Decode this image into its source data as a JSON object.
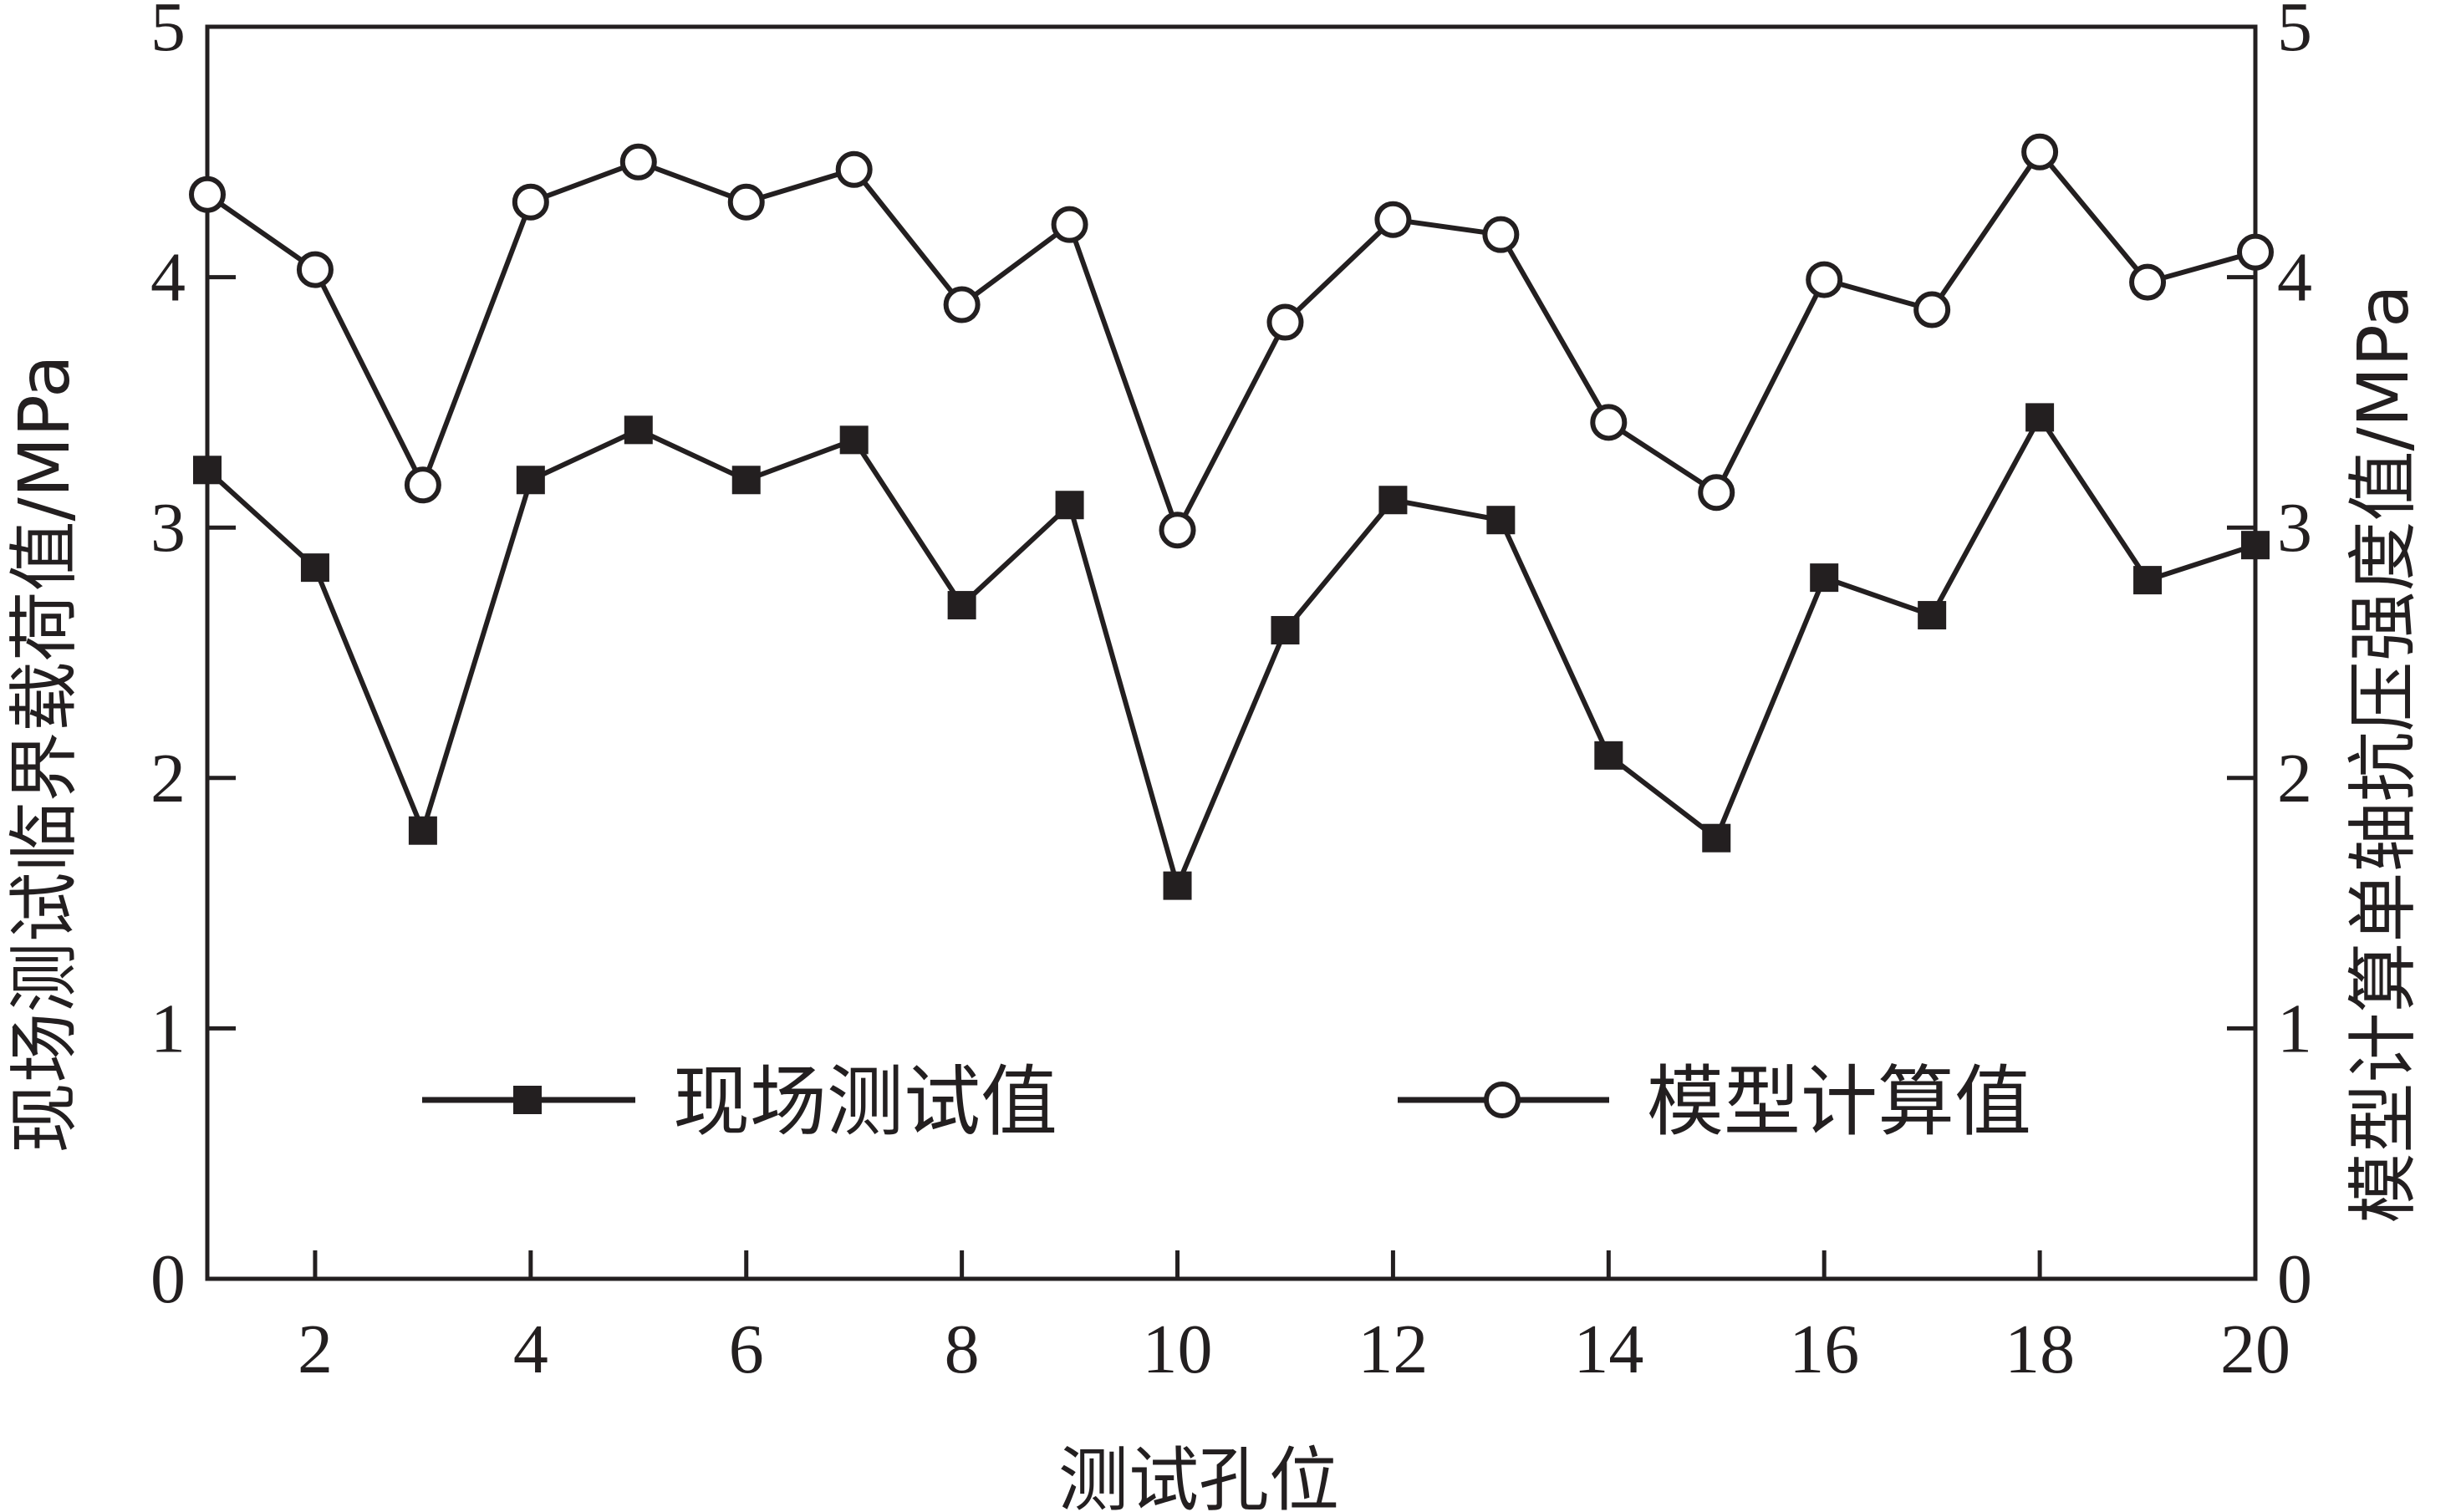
{
  "chart_data": {
    "type": "line",
    "xlabel": "测试孔位",
    "ylabel_left": "现场测试临界载荷值/MPa",
    "ylabel_right": "模型计算单轴抗压强度值/MPa",
    "xlim": [
      1,
      20
    ],
    "ylim": [
      0,
      5
    ],
    "x_ticks": [
      2,
      4,
      6,
      8,
      10,
      12,
      14,
      16,
      18,
      20
    ],
    "y_ticks": [
      0,
      1,
      2,
      3,
      4,
      5
    ],
    "grid": false,
    "legend_position": "bottom-center",
    "x": [
      1,
      2,
      3,
      4,
      5,
      6,
      7,
      8,
      9,
      10,
      11,
      12,
      13,
      14,
      15,
      16,
      17,
      18,
      19,
      20
    ],
    "series": [
      {
        "name": "现场测试值",
        "marker": "filled-square",
        "values": [
          3.23,
          2.84,
          1.79,
          3.19,
          3.39,
          3.19,
          3.35,
          2.69,
          3.09,
          1.57,
          2.59,
          3.11,
          3.03,
          2.09,
          1.76,
          2.8,
          2.65,
          3.44,
          2.79,
          2.93
        ]
      },
      {
        "name": "模型计算值",
        "marker": "open-circle",
        "values": [
          4.33,
          4.03,
          3.17,
          4.3,
          4.46,
          4.3,
          4.43,
          3.89,
          4.21,
          2.99,
          3.82,
          4.23,
          4.17,
          3.42,
          3.14,
          3.99,
          3.87,
          4.5,
          3.98,
          4.1
        ]
      }
    ],
    "colors": {
      "line": "#231f20",
      "axis": "#231f20",
      "marker_open_fill": "#ffffff"
    }
  }
}
